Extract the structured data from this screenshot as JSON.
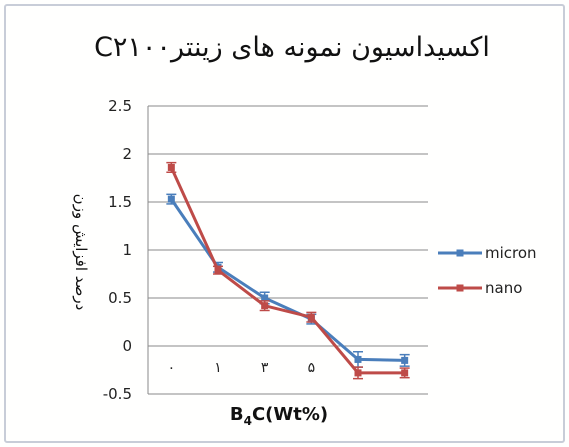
{
  "chart_data": {
    "type": "line",
    "title": "اکسیداسیون نمونه های زینترC۲۱۰۰",
    "xlabel": "B4C(Wt%)",
    "xlabel_main": "B",
    "xlabel_sub": "4",
    "xlabel_rest": "C(Wt%)",
    "ylabel": "درصد افزایش وزن",
    "categories": [
      "۰",
      "۱",
      "۳",
      "۵",
      "",
      ""
    ],
    "y_ticks": [
      "2.5",
      "2",
      "1.5",
      "1",
      "0.5",
      "0",
      "-0.5"
    ],
    "ylim": [
      -0.5,
      2.5
    ],
    "grid": true,
    "legend_position": "right",
    "series": [
      {
        "name": "micron",
        "color": "#4a7ebb",
        "values": [
          1.53,
          0.82,
          0.5,
          0.28,
          -0.14,
          -0.15
        ],
        "errors": [
          0.05,
          0.05,
          0.06,
          0.05,
          0.08,
          0.06
        ]
      },
      {
        "name": "nano",
        "color": "#be4b48",
        "values": [
          1.86,
          0.79,
          0.42,
          0.3,
          -0.28,
          -0.28
        ],
        "errors": [
          0.05,
          0.04,
          0.05,
          0.05,
          0.06,
          0.05
        ]
      }
    ]
  }
}
